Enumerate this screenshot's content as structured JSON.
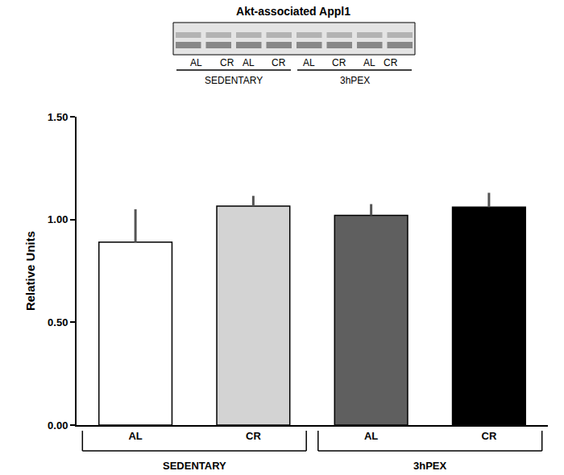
{
  "chart_data": {
    "type": "bar",
    "title": "Akt-associated Appl1",
    "categories": [
      "AL",
      "CR",
      "AL",
      "CR"
    ],
    "groups": [
      "SEDENTARY",
      "SEDENTARY",
      "3hPEX",
      "3hPEX"
    ],
    "values": [
      0.89,
      1.065,
      1.02,
      1.06
    ],
    "errors": [
      0.16,
      0.05,
      0.055,
      0.07
    ],
    "colors": [
      "#ffffff",
      "#d3d3d3",
      "#5f5f5f",
      "#000000"
    ],
    "y_label": "Relative Units",
    "ylim": [
      0,
      1.5
    ],
    "yticks": [
      {
        "value": 0,
        "label": "0.00"
      },
      {
        "value": 0.5,
        "label": "0.50"
      },
      {
        "value": 1,
        "label": "1.00"
      },
      {
        "value": 1.5,
        "label": "1.50"
      }
    ],
    "grid": false,
    "blot": {
      "lanes": [
        "AL",
        "CR",
        "AL",
        "CR",
        "AL",
        "CR",
        "AL",
        "CR"
      ],
      "lane_groups": [
        "SEDENTARY",
        "SEDENTARY",
        "SEDENTARY",
        "SEDENTARY",
        "3hPEX",
        "3hPEX",
        "3hPEX",
        "3hPEX"
      ]
    }
  }
}
